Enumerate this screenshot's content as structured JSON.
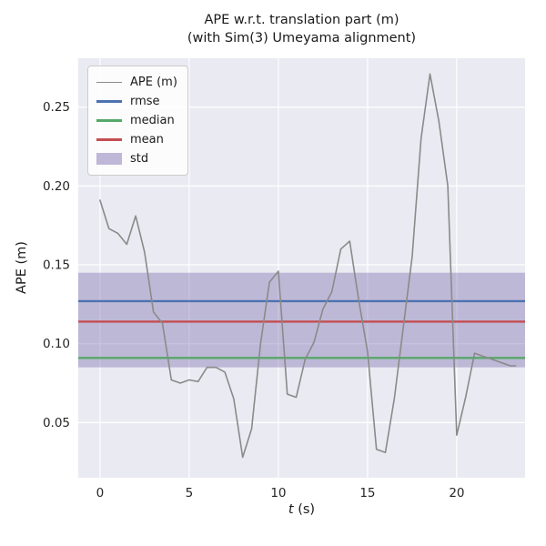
{
  "figure": {
    "title_line1": "APE w.r.t. translation part (m)",
    "title_line2": "(with Sim(3) Umeyama alignment)",
    "ylabel": "APE (m)",
    "xlabel_var": "t",
    "xlabel_rest": " (s)"
  },
  "legend": {
    "items": [
      {
        "label": "APE (m)",
        "type": "line",
        "color": "#8a8a8a"
      },
      {
        "label": "rmse",
        "type": "line",
        "color": "#4c72b0"
      },
      {
        "label": "median",
        "type": "line",
        "color": "#55a868"
      },
      {
        "label": "mean",
        "type": "line",
        "color": "#c44e52"
      },
      {
        "label": "std",
        "type": "patch",
        "color": "#8172b2"
      }
    ]
  },
  "chart_data": {
    "type": "line",
    "title": "APE w.r.t. translation part (m)\n(with Sim(3) Umeyama alignment)",
    "xlabel": "t (s)",
    "ylabel": "APE (m)",
    "grid": true,
    "legend_position": "upper left",
    "background": "#eaeaf2",
    "grid_color": "#ffffff",
    "xlim": [
      -1.22,
      23.83
    ],
    "ylim": [
      0.015,
      0.281
    ],
    "xticks": [
      0,
      5,
      10,
      15,
      20
    ],
    "xtick_labels": [
      "0",
      "5",
      "10",
      "15",
      "20"
    ],
    "yticks": [
      0.05,
      0.1,
      0.15,
      0.2,
      0.25
    ],
    "ytick_labels": [
      "0.05",
      "0.10",
      "0.15",
      "0.20",
      "0.25"
    ],
    "series": [
      {
        "name": "APE (m)",
        "color": "#8a8a8a",
        "points": [
          [
            0,
            0.191
          ],
          [
            0.5,
            0.173
          ],
          [
            1,
            0.17
          ],
          [
            1.5,
            0.163
          ],
          [
            2,
            0.181
          ],
          [
            2.5,
            0.158
          ],
          [
            3,
            0.12
          ],
          [
            3.5,
            0.113
          ],
          [
            4,
            0.077
          ],
          [
            4.5,
            0.075
          ],
          [
            5,
            0.077
          ],
          [
            5.5,
            0.076
          ],
          [
            6,
            0.085
          ],
          [
            6.5,
            0.085
          ],
          [
            7,
            0.082
          ],
          [
            7.5,
            0.065
          ],
          [
            8,
            0.028
          ],
          [
            8.5,
            0.046
          ],
          [
            9,
            0.1
          ],
          [
            9.5,
            0.139
          ],
          [
            10,
            0.146
          ],
          [
            10.5,
            0.068
          ],
          [
            11,
            0.066
          ],
          [
            11.5,
            0.09
          ],
          [
            12,
            0.101
          ],
          [
            12.5,
            0.122
          ],
          [
            13,
            0.133
          ],
          [
            13.5,
            0.16
          ],
          [
            14,
            0.165
          ],
          [
            14.5,
            0.128
          ],
          [
            15,
            0.095
          ],
          [
            15.5,
            0.033
          ],
          [
            16,
            0.031
          ],
          [
            16.5,
            0.065
          ],
          [
            17,
            0.11
          ],
          [
            17.5,
            0.155
          ],
          [
            18,
            0.23
          ],
          [
            18.5,
            0.271
          ],
          [
            19,
            0.241
          ],
          [
            19.5,
            0.2
          ],
          [
            20,
            0.042
          ],
          [
            20.5,
            0.066
          ],
          [
            21,
            0.094
          ],
          [
            21.5,
            0.092
          ],
          [
            22,
            0.09
          ],
          [
            22.5,
            0.088
          ],
          [
            23,
            0.086
          ],
          [
            23.3,
            0.086
          ]
        ]
      }
    ],
    "stat_lines": [
      {
        "name": "rmse",
        "value": 0.127,
        "color": "#4c72b0"
      },
      {
        "name": "median",
        "value": 0.091,
        "color": "#55a868"
      },
      {
        "name": "mean",
        "value": 0.114,
        "color": "#c44e52"
      }
    ],
    "std_band": {
      "name": "std",
      "low": 0.085,
      "high": 0.145,
      "color": "#8172b2",
      "alpha": 0.42
    }
  }
}
